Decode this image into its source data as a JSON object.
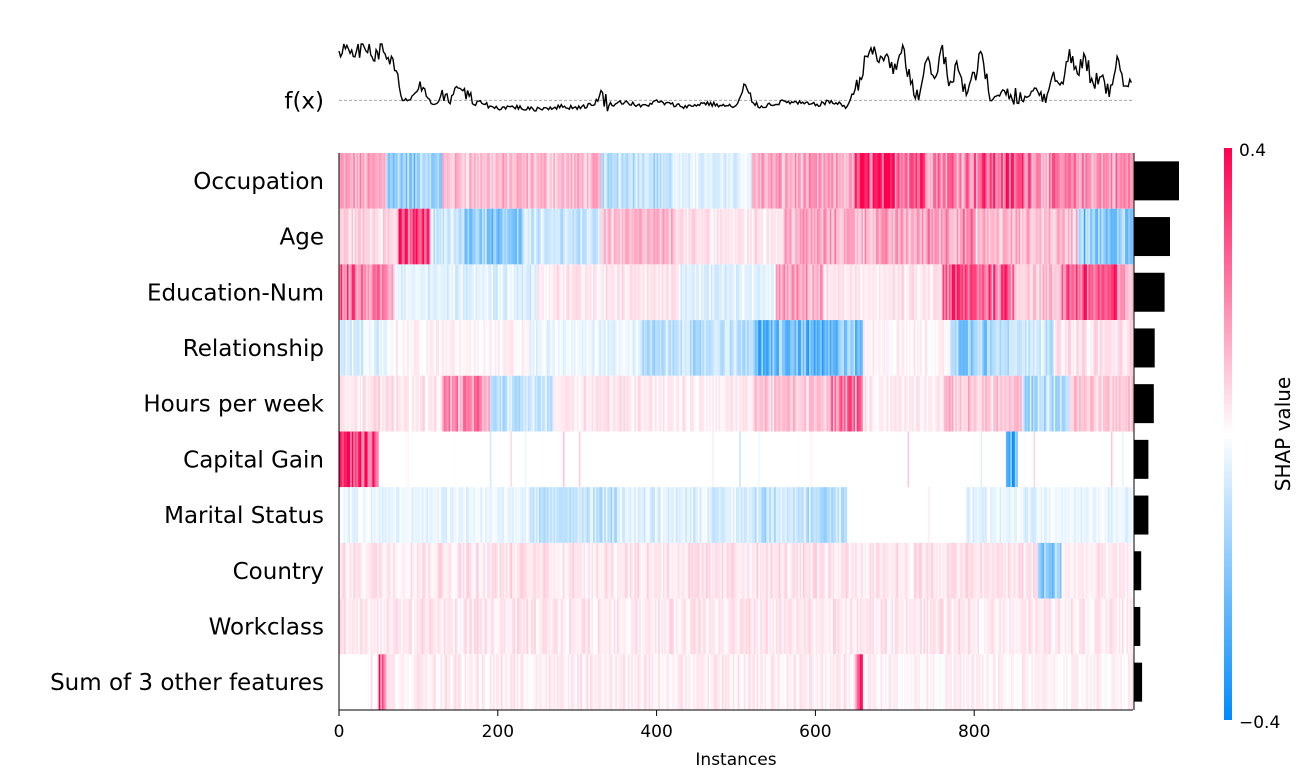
{
  "chart_data": {
    "type": "heatmap",
    "title": "",
    "xlabel": "Instances",
    "xlim": [
      0,
      1000
    ],
    "x_ticks": [
      0,
      200,
      400,
      600,
      800
    ],
    "fx_label": "f(x)",
    "colorbar": {
      "title": "SHAP value",
      "min": -0.4,
      "max": 0.4,
      "min_label": "−0.4",
      "max_label": "0.4"
    },
    "colors": {
      "negative": "#008bfb",
      "positive": "#ff0051",
      "neutral": "#ffffff",
      "bar": "#000000",
      "line": "#000000"
    },
    "features": [
      {
        "name": "Occupation",
        "importance": 0.05,
        "segments": [
          [
            0,
            60,
            0.15
          ],
          [
            60,
            130,
            -0.2
          ],
          [
            130,
            330,
            0.12
          ],
          [
            330,
            420,
            -0.12
          ],
          [
            420,
            520,
            -0.05
          ],
          [
            520,
            650,
            0.15
          ],
          [
            650,
            740,
            0.35
          ],
          [
            740,
            800,
            0.25
          ],
          [
            800,
            880,
            0.3
          ],
          [
            880,
            1000,
            0.2
          ]
        ]
      },
      {
        "name": "Age",
        "importance": 0.04,
        "segments": [
          [
            0,
            75,
            0.08
          ],
          [
            75,
            115,
            0.32
          ],
          [
            115,
            150,
            -0.08
          ],
          [
            150,
            230,
            -0.2
          ],
          [
            230,
            330,
            -0.1
          ],
          [
            330,
            430,
            0.12
          ],
          [
            430,
            560,
            0.05
          ],
          [
            560,
            740,
            0.15
          ],
          [
            740,
            800,
            0.2
          ],
          [
            800,
            930,
            0.12
          ],
          [
            930,
            1000,
            -0.22
          ]
        ]
      },
      {
        "name": "Education-Num",
        "importance": 0.034,
        "segments": [
          [
            0,
            20,
            0.3
          ],
          [
            20,
            70,
            0.2
          ],
          [
            70,
            250,
            -0.06
          ],
          [
            250,
            430,
            0.04
          ],
          [
            430,
            550,
            -0.05
          ],
          [
            550,
            610,
            0.15
          ],
          [
            610,
            760,
            0.04
          ],
          [
            760,
            850,
            0.3
          ],
          [
            850,
            910,
            0.1
          ],
          [
            910,
            980,
            0.3
          ],
          [
            980,
            1000,
            0.15
          ]
        ]
      },
      {
        "name": "Relationship",
        "importance": 0.023,
        "segments": [
          [
            0,
            60,
            -0.08
          ],
          [
            60,
            240,
            0.02
          ],
          [
            240,
            380,
            -0.04
          ],
          [
            380,
            520,
            -0.12
          ],
          [
            520,
            660,
            -0.25
          ],
          [
            660,
            770,
            0.02
          ],
          [
            770,
            830,
            -0.22
          ],
          [
            830,
            900,
            -0.1
          ],
          [
            900,
            1000,
            0.05
          ]
        ]
      },
      {
        "name": "Hours per week",
        "importance": 0.022,
        "segments": [
          [
            0,
            130,
            0.05
          ],
          [
            130,
            190,
            0.2
          ],
          [
            190,
            270,
            -0.1
          ],
          [
            270,
            400,
            0.05
          ],
          [
            400,
            520,
            0.03
          ],
          [
            520,
            620,
            0.1
          ],
          [
            620,
            660,
            0.25
          ],
          [
            660,
            760,
            0.03
          ],
          [
            760,
            860,
            0.1
          ],
          [
            860,
            920,
            -0.15
          ],
          [
            920,
            1000,
            0.1
          ]
        ]
      },
      {
        "name": "Capital Gain",
        "importance": 0.016,
        "segments": [
          [
            0,
            50,
            0.38
          ],
          [
            50,
            840,
            0.0
          ],
          [
            840,
            855,
            -0.3
          ],
          [
            855,
            1000,
            0.0
          ]
        ]
      },
      {
        "name": "Marital Status",
        "importance": 0.016,
        "segments": [
          [
            0,
            240,
            -0.04
          ],
          [
            240,
            350,
            -0.1
          ],
          [
            350,
            520,
            -0.06
          ],
          [
            520,
            640,
            -0.12
          ],
          [
            640,
            790,
            0.0
          ],
          [
            790,
            1000,
            -0.04
          ]
        ]
      },
      {
        "name": "Country",
        "importance": 0.008,
        "segments": [
          [
            0,
            880,
            0.05
          ],
          [
            880,
            910,
            -0.2
          ],
          [
            910,
            1000,
            0.03
          ]
        ]
      },
      {
        "name": "Workclass",
        "importance": 0.007,
        "segments": [
          [
            0,
            1000,
            0.04
          ]
        ]
      },
      {
        "name": "Sum of 3 other features",
        "importance": 0.009,
        "segments": [
          [
            0,
            50,
            0.0
          ],
          [
            50,
            60,
            0.38
          ],
          [
            60,
            650,
            0.03
          ],
          [
            650,
            660,
            0.35
          ],
          [
            660,
            1000,
            0.02
          ]
        ]
      }
    ],
    "fx_points": [
      [
        0,
        0.95
      ],
      [
        10,
        0.93
      ],
      [
        20,
        0.94
      ],
      [
        40,
        0.92
      ],
      [
        45,
        0.75
      ],
      [
        50,
        0.9
      ],
      [
        60,
        0.88
      ],
      [
        70,
        0.6
      ],
      [
        80,
        0.1
      ],
      [
        90,
        0.15
      ],
      [
        100,
        0.3
      ],
      [
        110,
        0.15
      ],
      [
        120,
        0.05
      ],
      [
        130,
        0.2
      ],
      [
        140,
        0.1
      ],
      [
        150,
        0.4
      ],
      [
        160,
        0.2
      ],
      [
        170,
        0.05
      ],
      [
        180,
        0.1
      ],
      [
        190,
        0.02
      ],
      [
        200,
        0.0
      ],
      [
        220,
        0.02
      ],
      [
        240,
        -0.02
      ],
      [
        260,
        0.0
      ],
      [
        280,
        0.02
      ],
      [
        300,
        0.01
      ],
      [
        320,
        0.05
      ],
      [
        330,
        0.2
      ],
      [
        340,
        0.05
      ],
      [
        360,
        0.1
      ],
      [
        380,
        0.02
      ],
      [
        400,
        0.1
      ],
      [
        420,
        0.05
      ],
      [
        440,
        0.02
      ],
      [
        460,
        0.08
      ],
      [
        480,
        0.04
      ],
      [
        500,
        0.02
      ],
      [
        510,
        0.3
      ],
      [
        520,
        0.1
      ],
      [
        530,
        0.02
      ],
      [
        560,
        0.1
      ],
      [
        600,
        0.05
      ],
      [
        620,
        0.1
      ],
      [
        640,
        0.02
      ],
      [
        650,
        0.3
      ],
      [
        660,
        0.6
      ],
      [
        670,
        0.95
      ],
      [
        680,
        0.7
      ],
      [
        690,
        0.85
      ],
      [
        700,
        0.55
      ],
      [
        710,
        0.9
      ],
      [
        720,
        0.4
      ],
      [
        730,
        0.1
      ],
      [
        740,
        0.8
      ],
      [
        750,
        0.5
      ],
      [
        760,
        0.9
      ],
      [
        770,
        0.3
      ],
      [
        780,
        0.7
      ],
      [
        790,
        0.2
      ],
      [
        800,
        0.5
      ],
      [
        810,
        0.85
      ],
      [
        820,
        0.1
      ],
      [
        840,
        0.3
      ],
      [
        860,
        0.1
      ],
      [
        880,
        0.35
      ],
      [
        890,
        0.1
      ],
      [
        900,
        0.6
      ],
      [
        910,
        0.3
      ],
      [
        920,
        0.9
      ],
      [
        930,
        0.5
      ],
      [
        940,
        0.8
      ],
      [
        950,
        0.3
      ],
      [
        960,
        0.6
      ],
      [
        970,
        0.2
      ],
      [
        980,
        0.7
      ],
      [
        990,
        0.3
      ],
      [
        1000,
        0.55
      ]
    ]
  }
}
